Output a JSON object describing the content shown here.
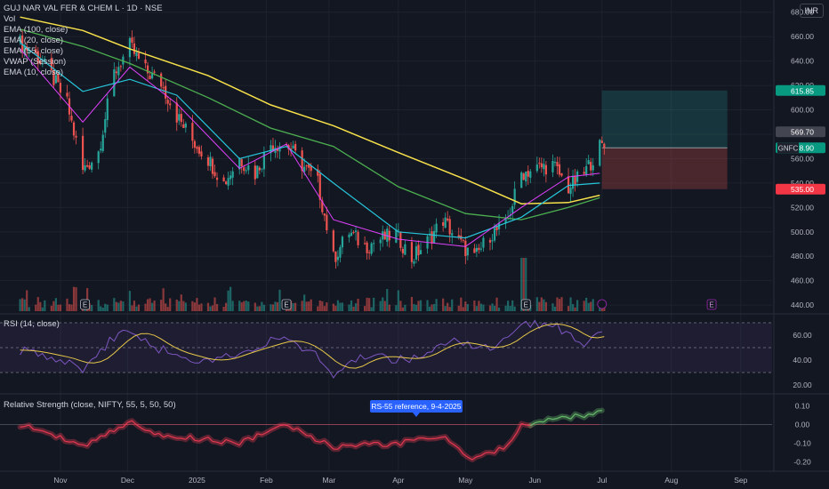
{
  "header": {
    "symbol_line": "GUJ NAR VAL FER & CHEM L · 1D · NSE",
    "currency": "INR",
    "indicators": [
      "Vol",
      "EMA (100, close)",
      "EMA (20, close)",
      "EMA (55, close)",
      "VWAP (Session)",
      "EMA (10, close)"
    ]
  },
  "colors": {
    "background": "#131722",
    "grid": "#1e222d",
    "up": "#26a69a",
    "down": "#ef5350",
    "ema100": "#f7e14b",
    "ema55": "#4caf50",
    "ema20": "#26c6da",
    "ema10": "#e040fb",
    "rsi_line": "#7e57c2",
    "rsi_ma": "#e6c84a",
    "rs_line": "#e53950",
    "rs_positive": "#66bb6a"
  },
  "price_axis": {
    "ticks": [
      "680.00",
      "660.00",
      "640.00",
      "620.00",
      "600.00",
      "580.00",
      "560.00",
      "540.00",
      "520.00",
      "500.00",
      "480.00",
      "460.00",
      "440.00"
    ]
  },
  "price_labels": {
    "target": "615.85",
    "last_close": "569.70",
    "ticker": "GNFC",
    "ticker_price": "568.90",
    "stop": "535.00"
  },
  "rsi_pane": {
    "title": "RSI (14, close)",
    "ticks": [
      "60.00",
      "40.00",
      "20.00"
    ]
  },
  "rs_pane": {
    "title": "Relative Strength (close, NIFTY, 55, 5, 50, 50)",
    "ticks": [
      "0.10",
      "0.00",
      "-0.10",
      "-0.20"
    ],
    "annotation": "RS-55 reference, 9-4-2025"
  },
  "x_axis": {
    "labels": [
      "Nov",
      "Dec",
      "2025",
      "Feb",
      "Mar",
      "Apr",
      "May",
      "Jun",
      "Jul",
      "Aug",
      "Sep"
    ]
  },
  "earnings_marker": "E",
  "chart_data": {
    "type": "candlestick",
    "ylim": [
      435,
      690
    ],
    "trade_box": {
      "entry": 568.9,
      "target": 615.85,
      "stop": 535.0
    },
    "close_path": [
      {
        "date": "2024-10-14",
        "close": 655
      },
      {
        "date": "2024-10-21",
        "close": 645
      },
      {
        "date": "2024-10-28",
        "close": 628
      },
      {
        "date": "2024-11-04",
        "close": 605
      },
      {
        "date": "2024-11-11",
        "close": 550
      },
      {
        "date": "2024-11-18",
        "close": 566
      },
      {
        "date": "2024-11-25",
        "close": 630
      },
      {
        "date": "2024-12-02",
        "close": 652
      },
      {
        "date": "2024-12-09",
        "close": 632
      },
      {
        "date": "2024-12-16",
        "close": 622
      },
      {
        "date": "2024-12-23",
        "close": 595
      },
      {
        "date": "2024-12-30",
        "close": 575
      },
      {
        "date": "2025-01-06",
        "close": 560
      },
      {
        "date": "2025-01-13",
        "close": 540
      },
      {
        "date": "2025-01-20",
        "close": 560
      },
      {
        "date": "2025-01-27",
        "close": 548
      },
      {
        "date": "2025-02-03",
        "close": 572
      },
      {
        "date": "2025-02-10",
        "close": 572
      },
      {
        "date": "2025-02-17",
        "close": 555
      },
      {
        "date": "2025-02-24",
        "close": 540
      },
      {
        "date": "2025-03-03",
        "close": 478
      },
      {
        "date": "2025-03-10",
        "close": 500
      },
      {
        "date": "2025-03-17",
        "close": 488
      },
      {
        "date": "2025-03-24",
        "close": 494
      },
      {
        "date": "2025-03-31",
        "close": 498
      },
      {
        "date": "2025-04-07",
        "close": 478
      },
      {
        "date": "2025-04-14",
        "close": 492
      },
      {
        "date": "2025-04-21",
        "close": 510
      },
      {
        "date": "2025-04-28",
        "close": 492
      },
      {
        "date": "2025-05-05",
        "close": 478
      },
      {
        "date": "2025-05-12",
        "close": 498
      },
      {
        "date": "2025-05-19",
        "close": 505
      },
      {
        "date": "2025-05-26",
        "close": 548
      },
      {
        "date": "2025-06-02",
        "close": 552
      },
      {
        "date": "2025-06-09",
        "close": 555
      },
      {
        "date": "2025-06-16",
        "close": 536
      },
      {
        "date": "2025-06-23",
        "close": 548
      },
      {
        "date": "2025-06-30",
        "close": 569.7
      }
    ],
    "ema100": [
      {
        "date": "2024-10-14",
        "value": 676
      },
      {
        "date": "2024-11-11",
        "value": 665
      },
      {
        "date": "2024-12-02",
        "value": 650
      },
      {
        "date": "2025-01-06",
        "value": 628
      },
      {
        "date": "2025-02-03",
        "value": 604
      },
      {
        "date": "2025-03-03",
        "value": 587
      },
      {
        "date": "2025-04-01",
        "value": 565
      },
      {
        "date": "2025-05-01",
        "value": 543
      },
      {
        "date": "2025-05-26",
        "value": 523
      },
      {
        "date": "2025-06-16",
        "value": 524
      },
      {
        "date": "2025-06-30",
        "value": 530
      }
    ],
    "ema55": [
      {
        "date": "2024-10-14",
        "value": 666
      },
      {
        "date": "2024-11-11",
        "value": 652
      },
      {
        "date": "2024-12-02",
        "value": 638
      },
      {
        "date": "2025-01-06",
        "value": 610
      },
      {
        "date": "2025-02-03",
        "value": 585
      },
      {
        "date": "2025-03-03",
        "value": 570
      },
      {
        "date": "2025-04-01",
        "value": 537
      },
      {
        "date": "2025-05-01",
        "value": 515
      },
      {
        "date": "2025-05-26",
        "value": 510
      },
      {
        "date": "2025-06-16",
        "value": 520
      },
      {
        "date": "2025-06-30",
        "value": 528
      }
    ],
    "ema20": [
      {
        "date": "2024-10-14",
        "value": 655
      },
      {
        "date": "2024-11-11",
        "value": 615
      },
      {
        "date": "2024-12-02",
        "value": 625
      },
      {
        "date": "2024-12-23",
        "value": 612
      },
      {
        "date": "2025-01-20",
        "value": 560
      },
      {
        "date": "2025-02-10",
        "value": 570
      },
      {
        "date": "2025-03-03",
        "value": 540
      },
      {
        "date": "2025-04-01",
        "value": 500
      },
      {
        "date": "2025-05-01",
        "value": 495
      },
      {
        "date": "2025-05-26",
        "value": 512
      },
      {
        "date": "2025-06-16",
        "value": 538
      },
      {
        "date": "2025-06-30",
        "value": 540
      }
    ],
    "ema10": [
      {
        "date": "2024-10-14",
        "value": 650
      },
      {
        "date": "2024-11-11",
        "value": 590
      },
      {
        "date": "2024-12-02",
        "value": 635
      },
      {
        "date": "2024-12-23",
        "value": 605
      },
      {
        "date": "2025-01-20",
        "value": 552
      },
      {
        "date": "2025-02-10",
        "value": 572
      },
      {
        "date": "2025-03-03",
        "value": 510
      },
      {
        "date": "2025-04-01",
        "value": 494
      },
      {
        "date": "2025-05-01",
        "value": 488
      },
      {
        "date": "2025-05-26",
        "value": 520
      },
      {
        "date": "2025-06-16",
        "value": 545
      },
      {
        "date": "2025-06-30",
        "value": 548
      }
    ],
    "rsi": [
      {
        "date": "2024-10-14",
        "value": 48
      },
      {
        "date": "2024-11-04",
        "value": 40
      },
      {
        "date": "2024-11-11",
        "value": 33
      },
      {
        "date": "2024-11-25",
        "value": 58
      },
      {
        "date": "2024-12-02",
        "value": 66
      },
      {
        "date": "2024-12-16",
        "value": 48
      },
      {
        "date": "2025-01-06",
        "value": 38
      },
      {
        "date": "2025-01-20",
        "value": 47
      },
      {
        "date": "2025-02-10",
        "value": 58
      },
      {
        "date": "2025-02-24",
        "value": 42
      },
      {
        "date": "2025-03-03",
        "value": 28
      },
      {
        "date": "2025-03-17",
        "value": 44
      },
      {
        "date": "2025-04-07",
        "value": 40
      },
      {
        "date": "2025-04-21",
        "value": 56
      },
      {
        "date": "2025-05-12",
        "value": 48
      },
      {
        "date": "2025-05-26",
        "value": 68
      },
      {
        "date": "2025-06-09",
        "value": 70
      },
      {
        "date": "2025-06-23",
        "value": 52
      },
      {
        "date": "2025-06-30",
        "value": 66
      }
    ],
    "rs": [
      {
        "date": "2024-10-14",
        "value": 0.0
      },
      {
        "date": "2024-10-28",
        "value": -0.05
      },
      {
        "date": "2024-11-11",
        "value": -0.12
      },
      {
        "date": "2024-11-25",
        "value": -0.03
      },
      {
        "date": "2024-12-02",
        "value": 0.02
      },
      {
        "date": "2024-12-16",
        "value": -0.06
      },
      {
        "date": "2025-01-06",
        "value": -0.08
      },
      {
        "date": "2025-01-20",
        "value": -0.1
      },
      {
        "date": "2025-02-10",
        "value": 0.0
      },
      {
        "date": "2025-03-03",
        "value": -0.12
      },
      {
        "date": "2025-04-01",
        "value": -0.1
      },
      {
        "date": "2025-04-21",
        "value": -0.07
      },
      {
        "date": "2025-05-05",
        "value": -0.19
      },
      {
        "date": "2025-05-19",
        "value": -0.12
      },
      {
        "date": "2025-05-26",
        "value": 0.0
      },
      {
        "date": "2025-06-09",
        "value": 0.03
      },
      {
        "date": "2025-06-23",
        "value": 0.05
      },
      {
        "date": "2025-06-30",
        "value": 0.08
      }
    ]
  }
}
